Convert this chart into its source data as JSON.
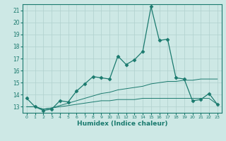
{
  "title": "",
  "xlabel": "Humidex (Indice chaleur)",
  "x_values": [
    0,
    1,
    2,
    3,
    4,
    5,
    6,
    7,
    8,
    9,
    10,
    11,
    12,
    13,
    14,
    15,
    16,
    17,
    18,
    19,
    20,
    21,
    22,
    23
  ],
  "line1_y": [
    13.7,
    13.0,
    12.7,
    12.8,
    13.5,
    13.4,
    14.3,
    14.9,
    15.5,
    15.4,
    15.3,
    17.2,
    16.5,
    16.9,
    17.6,
    21.3,
    18.5,
    18.6,
    15.4,
    15.3,
    13.5,
    13.6,
    14.1,
    13.2
  ],
  "line2_y": [
    13.0,
    13.0,
    12.8,
    12.9,
    13.1,
    13.3,
    13.5,
    13.7,
    13.9,
    14.1,
    14.2,
    14.4,
    14.5,
    14.6,
    14.7,
    14.9,
    15.0,
    15.1,
    15.1,
    15.2,
    15.2,
    15.3,
    15.3,
    15.3
  ],
  "line3_y": [
    13.0,
    13.0,
    12.8,
    12.9,
    13.0,
    13.1,
    13.2,
    13.3,
    13.4,
    13.5,
    13.5,
    13.6,
    13.6,
    13.6,
    13.7,
    13.7,
    13.7,
    13.7,
    13.7,
    13.7,
    13.7,
    13.7,
    13.7,
    13.2
  ],
  "line_color": "#1a7a6e",
  "bg_color": "#cde8e5",
  "grid_color": "#b0d0ce",
  "ylim": [
    12.5,
    21.5
  ],
  "yticks": [
    13,
    14,
    15,
    16,
    17,
    18,
    19,
    20,
    21
  ],
  "xlim": [
    -0.5,
    23.5
  ],
  "marker": "D",
  "markersize": 2.5
}
